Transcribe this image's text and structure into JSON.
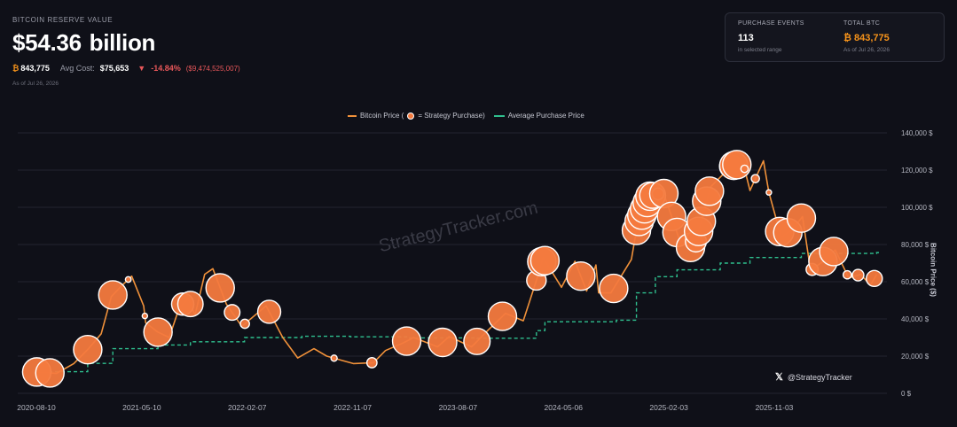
{
  "header": {
    "eyebrow": "BITCOIN RESERVE VALUE",
    "value": "$54.36",
    "value_unit": "billion",
    "btc_symbol": "₿",
    "btc_amount": "843,775",
    "avg_cost_label": "Avg Cost:",
    "avg_cost_value": "$75,653",
    "change_icon": "triangle-down-icon",
    "change_pct": "-14.84%",
    "change_abs": "($9,474,525,007)",
    "as_of": "As of Jul 26, 2026"
  },
  "stats": {
    "purchase_events_label": "PURCHASE EVENTS",
    "purchase_events_value": "113",
    "purchase_events_sub": "in selected range",
    "total_btc_label": "TOTAL BTC",
    "total_btc_value": "₿ 843,775",
    "total_btc_sub": "As of Jul 26, 2026"
  },
  "legend": {
    "price_label": "Bitcoin Price (",
    "purchase_label": "= Strategy Purchase)",
    "avg_label": "Average Purchase Price"
  },
  "watermark": "StrategyTracker.com",
  "handle": {
    "icon": "x-logo-icon",
    "text": "@StrategyTracker"
  },
  "colors": {
    "background": "#0f1018",
    "price_line": "#f0913a",
    "purchase_bubble": "#f47a3e",
    "avg_line": "#2fbf8e",
    "negative": "#e8575a",
    "btc": "#f7931a"
  },
  "chart_data": {
    "type": "line",
    "title": "",
    "xlabel": "",
    "ylabel": "Bitcoin Price ($)",
    "ylim": [
      0,
      140000
    ],
    "y_ticks": [
      0,
      20000,
      40000,
      60000,
      80000,
      100000,
      120000,
      140000
    ],
    "y_tick_labels": [
      "0 $",
      "20,000 $",
      "40,000 $",
      "60,000 $",
      "80,000 $",
      "100,000 $",
      "120,000 $",
      "140,000 $"
    ],
    "x_ticks": [
      "2020-08-10",
      "2021-05-10",
      "2022-02-07",
      "2022-11-07",
      "2023-08-07",
      "2024-05-06",
      "2025-02-03",
      "2025-11-03"
    ],
    "grid": true,
    "legend_position": "top-center",
    "series": [
      {
        "name": "Bitcoin Price",
        "points": [
          [
            "2020-08-10",
            11500
          ],
          [
            "2020-10-01",
            10700
          ],
          [
            "2020-11-15",
            16000
          ],
          [
            "2020-12-21",
            23500
          ],
          [
            "2021-01-25",
            32000
          ],
          [
            "2021-02-20",
            52000
          ],
          [
            "2021-03-15",
            57000
          ],
          [
            "2021-04-14",
            63000
          ],
          [
            "2021-05-15",
            47000
          ],
          [
            "2021-05-20",
            38000
          ],
          [
            "2021-06-20",
            33000
          ],
          [
            "2021-07-20",
            30000
          ],
          [
            "2021-08-15",
            46000
          ],
          [
            "2021-09-07",
            51000
          ],
          [
            "2021-09-25",
            42000
          ],
          [
            "2021-10-20",
            64000
          ],
          [
            "2021-11-10",
            67000
          ],
          [
            "2021-12-15",
            48000
          ],
          [
            "2022-01-24",
            36000
          ],
          [
            "2022-03-28",
            47000
          ],
          [
            "2022-05-10",
            30000
          ],
          [
            "2022-06-18",
            19000
          ],
          [
            "2022-07-30",
            24000
          ],
          [
            "2022-09-01",
            20000
          ],
          [
            "2022-11-09",
            16000
          ],
          [
            "2022-12-31",
            16500
          ],
          [
            "2023-01-31",
            23000
          ],
          [
            "2023-03-17",
            27000
          ],
          [
            "2023-04-14",
            30000
          ],
          [
            "2023-06-15",
            25000
          ],
          [
            "2023-07-15",
            30500
          ],
          [
            "2023-09-11",
            25000
          ],
          [
            "2023-10-24",
            34000
          ],
          [
            "2023-12-08",
            43000
          ],
          [
            "2024-01-23",
            39000
          ],
          [
            "2024-02-28",
            62000
          ],
          [
            "2024-03-14",
            73000
          ],
          [
            "2024-05-01",
            57000
          ],
          [
            "2024-06-05",
            71000
          ],
          [
            "2024-07-05",
            55000
          ],
          [
            "2024-07-29",
            69000
          ],
          [
            "2024-08-05",
            54000
          ],
          [
            "2024-09-06",
            54000
          ],
          [
            "2024-10-29",
            72000
          ],
          [
            "2024-11-13",
            90000
          ],
          [
            "2024-12-16",
            106000
          ],
          [
            "2025-01-20",
            108000
          ],
          [
            "2025-02-28",
            84000
          ],
          [
            "2025-04-08",
            77000
          ],
          [
            "2025-05-22",
            111000
          ],
          [
            "2025-07-14",
            122000
          ],
          [
            "2025-08-14",
            124000
          ],
          [
            "2025-09-01",
            109000
          ],
          [
            "2025-10-06",
            125000
          ],
          [
            "2025-10-20",
            108000
          ],
          [
            "2025-11-21",
            84000
          ],
          [
            "2025-12-20",
            88000
          ],
          [
            "2026-01-15",
            95000
          ],
          [
            "2026-02-05",
            66000
          ],
          [
            "2026-03-10",
            71000
          ],
          [
            "2026-04-10",
            77000
          ],
          [
            "2026-05-15",
            62000
          ],
          [
            "2026-06-15",
            64000
          ],
          [
            "2026-07-10",
            58000
          ],
          [
            "2026-07-26",
            64000
          ]
        ]
      },
      {
        "name": "Average Purchase Price",
        "points": [
          [
            "2020-08-10",
            11650
          ],
          [
            "2020-12-21",
            16100
          ],
          [
            "2021-02-24",
            24000
          ],
          [
            "2021-06-21",
            26000
          ],
          [
            "2021-09-13",
            27700
          ],
          [
            "2022-01-31",
            30000
          ],
          [
            "2022-06-29",
            30700
          ],
          [
            "2022-11-01",
            30400
          ],
          [
            "2023-03-27",
            29800
          ],
          [
            "2023-09-25",
            29600
          ],
          [
            "2024-02-26",
            33700
          ],
          [
            "2024-03-19",
            38500
          ],
          [
            "2024-09-20",
            39300
          ],
          [
            "2024-11-11",
            54000
          ],
          [
            "2024-12-30",
            62700
          ],
          [
            "2025-02-24",
            66400
          ],
          [
            "2025-06-16",
            70000
          ],
          [
            "2025-09-01",
            73000
          ],
          [
            "2026-01-12",
            75200
          ],
          [
            "2026-07-26",
            75653
          ]
        ]
      }
    ],
    "purchases": [
      [
        "2020-08-11",
        21454
      ],
      [
        "2020-09-14",
        16796
      ],
      [
        "2020-12-21",
        29646
      ],
      [
        "2021-02-24",
        19452
      ],
      [
        "2021-04-05",
        253
      ],
      [
        "2021-05-18",
        229
      ],
      [
        "2021-06-21",
        13005
      ],
      [
        "2021-08-24",
        3907
      ],
      [
        "2021-09-13",
        5050
      ],
      [
        "2021-11-29",
        7002
      ],
      [
        "2021-12-30",
        1914
      ],
      [
        "2022-02-01",
        660
      ],
      [
        "2022-04-05",
        4167
      ],
      [
        "2022-09-20",
        301
      ],
      [
        "2022-12-27",
        810
      ],
      [
        "2023-03-27",
        6455
      ],
      [
        "2023-06-28",
        12333
      ],
      [
        "2023-09-25",
        5445
      ],
      [
        "2023-11-30",
        16130
      ],
      [
        "2024-02-26",
        3000
      ],
      [
        "2024-03-11",
        12000
      ],
      [
        "2024-03-19",
        9245
      ],
      [
        "2024-06-20",
        11931
      ],
      [
        "2024-09-13",
        18300
      ],
      [
        "2024-11-11",
        27200
      ],
      [
        "2024-11-18",
        51780
      ],
      [
        "2024-11-25",
        55500
      ],
      [
        "2024-12-02",
        15400
      ],
      [
        "2024-12-09",
        21550
      ],
      [
        "2024-12-16",
        15350
      ],
      [
        "2024-12-23",
        5262
      ],
      [
        "2025-01-06",
        1070
      ],
      [
        "2025-01-21",
        11000
      ],
      [
        "2025-02-10",
        7633
      ],
      [
        "2025-02-24",
        20356
      ],
      [
        "2025-03-31",
        22048
      ],
      [
        "2025-04-14",
        3459
      ],
      [
        "2025-04-21",
        6556
      ],
      [
        "2025-04-28",
        15355
      ],
      [
        "2025-05-12",
        13390
      ],
      [
        "2025-05-19",
        7390
      ],
      [
        "2025-07-14",
        4225
      ],
      [
        "2025-07-21",
        6220
      ],
      [
        "2025-07-29",
        21021
      ],
      [
        "2025-08-18",
        430
      ],
      [
        "2025-09-15",
        525
      ],
      [
        "2025-10-20",
        168
      ],
      [
        "2025-11-17",
        8178
      ],
      [
        "2025-12-08",
        10624
      ],
      [
        "2026-01-12",
        13627
      ],
      [
        "2026-02-09",
        1142
      ],
      [
        "2026-03-09",
        17994
      ],
      [
        "2026-04-06",
        22305
      ],
      [
        "2026-05-11",
        535
      ],
      [
        "2026-06-08",
        1045
      ],
      [
        "2026-07-20",
        2025
      ]
    ]
  }
}
